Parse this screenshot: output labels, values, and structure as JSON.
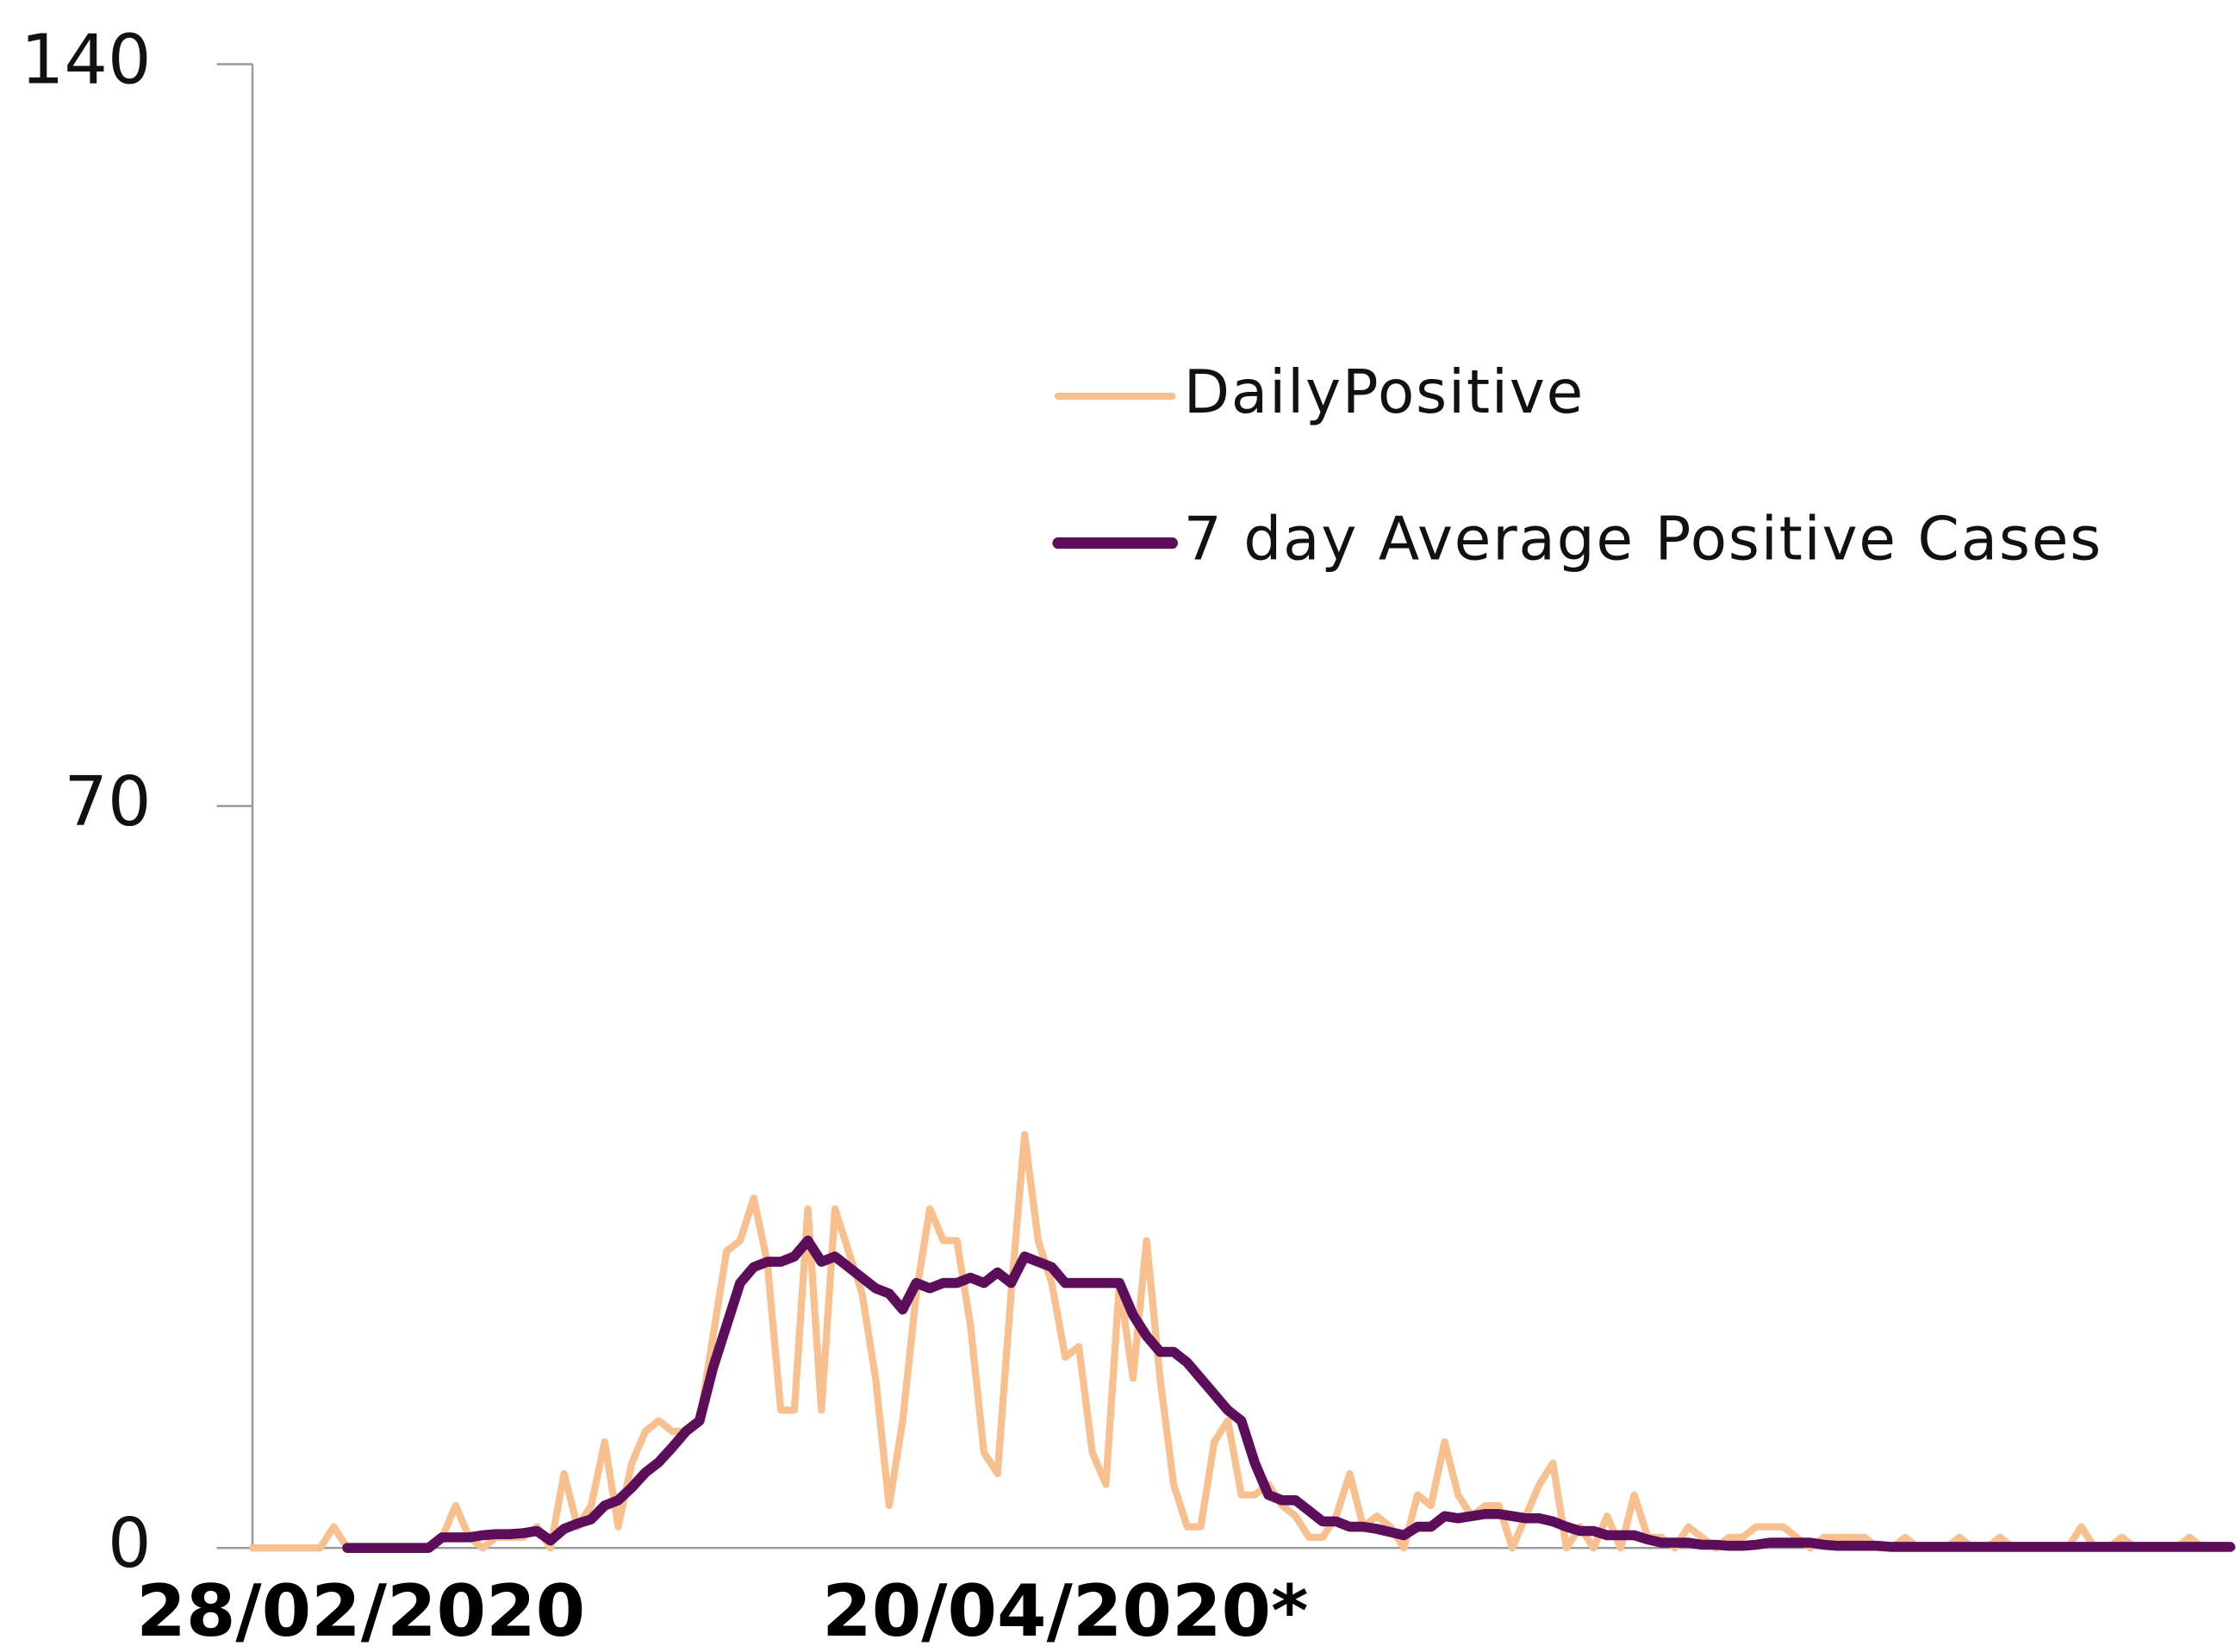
{
  "chart_data": {
    "type": "line",
    "categories": [
      null,
      null,
      null,
      null,
      null,
      null,
      null,
      null,
      "28/02/2020",
      null,
      null,
      null,
      null,
      null,
      null,
      null,
      null,
      null,
      null,
      null,
      null,
      null,
      null,
      null,
      null,
      null,
      null,
      null,
      null,
      null,
      null,
      null,
      null,
      null,
      null,
      null,
      null,
      null,
      null,
      null,
      null,
      null,
      null,
      null,
      null,
      null,
      null,
      null,
      null,
      null,
      null,
      null,
      null,
      null,
      null,
      null,
      null,
      null,
      null,
      null,
      "20/04/2020*",
      null,
      null,
      null,
      null,
      null,
      null,
      null,
      null,
      null,
      null,
      null,
      null,
      null,
      null,
      null,
      null,
      null,
      null,
      null,
      null,
      null,
      null,
      null,
      null,
      null,
      null,
      null,
      null,
      null,
      null,
      null,
      null,
      null,
      null,
      null,
      null,
      null,
      null,
      null,
      null,
      null,
      null,
      null,
      null,
      null,
      null,
      null,
      null,
      null,
      null,
      null,
      null,
      null,
      null,
      null,
      null,
      null,
      null,
      null,
      null,
      null,
      null,
      null,
      null,
      null,
      null,
      null,
      null,
      null,
      null,
      null,
      null,
      null,
      null,
      null,
      null,
      null,
      null,
      null,
      null,
      null,
      null,
      null,
      null,
      null,
      null
    ],
    "series": [
      {
        "name": "DailyPositive",
        "color": "#f8c08e",
        "values": [
          0,
          0,
          0,
          0,
          0,
          0,
          2,
          0,
          0,
          0,
          0,
          0,
          0,
          0,
          1,
          4,
          1,
          0,
          1,
          1,
          1,
          2,
          0,
          7,
          2,
          4,
          10,
          2,
          8,
          11,
          12,
          11,
          11,
          12,
          20,
          28,
          29,
          33,
          27,
          13,
          13,
          32,
          13,
          32,
          28,
          24,
          16,
          4,
          12,
          24,
          32,
          29,
          29,
          21,
          9,
          7,
          24,
          39,
          29,
          25,
          18,
          19,
          9,
          6,
          25,
          16,
          29,
          16,
          6,
          2,
          2,
          10,
          12,
          5,
          5,
          6,
          4,
          3,
          1,
          1,
          3,
          7,
          2,
          3,
          2,
          0,
          5,
          4,
          10,
          5,
          3,
          4,
          4,
          0,
          3,
          6,
          8,
          0,
          2,
          0,
          3,
          0,
          5,
          1,
          1,
          0,
          2,
          1,
          0,
          1,
          1,
          2,
          2,
          2,
          1,
          0,
          1,
          1,
          1,
          1,
          0,
          0,
          1,
          0,
          0,
          0,
          1,
          0,
          0,
          1,
          0,
          0,
          0,
          0,
          0,
          2,
          0,
          0,
          1,
          0,
          0,
          0,
          0,
          1,
          0,
          0,
          0
        ]
      },
      {
        "name": "7 day Average Positive Cases",
        "color": "#5c0e5a",
        "values": [
          null,
          null,
          null,
          null,
          null,
          null,
          null,
          0,
          0,
          0,
          0,
          0,
          0,
          0,
          1,
          1,
          1,
          1.2,
          1.3,
          1.3,
          1.4,
          1.6,
          0.7,
          1.8,
          2.3,
          2.7,
          4,
          4.5,
          5.7,
          7.1,
          8.1,
          9.5,
          11,
          12,
          17,
          21,
          25,
          26.5,
          27,
          27,
          27.5,
          29,
          27,
          27.5,
          26.5,
          25.5,
          24.5,
          24,
          22.5,
          25,
          24.5,
          25,
          25,
          25.5,
          25,
          26,
          25,
          27.5,
          27,
          26.5,
          25,
          25,
          25,
          25,
          25,
          22,
          20,
          18.5,
          18.5,
          17.5,
          16,
          14.5,
          13,
          12,
          8,
          5,
          4.5,
          4.5,
          3.5,
          2.5,
          2.5,
          2,
          2,
          1.8,
          1.5,
          1.2,
          2,
          2,
          3,
          2.8,
          3,
          3.2,
          3.2,
          3,
          2.8,
          2.8,
          2.5,
          2,
          1.6,
          1.6,
          1.2,
          1.2,
          1.2,
          0.8,
          0.5,
          0.5,
          0.5,
          0.3,
          0.3,
          0.2,
          0.2,
          0.3,
          0.5,
          0.5,
          0.5,
          0.5,
          0.3,
          0.2,
          0.2,
          0.2,
          0.2,
          0.1,
          0.1,
          0.1,
          0.1,
          0.1,
          0.1,
          0.1,
          0.1,
          0.1,
          0.1,
          0.1,
          0.1,
          0.1,
          0.1,
          0.1,
          0.1,
          0.1,
          0.1,
          0.1,
          0.1,
          0.1,
          0.1,
          0.1,
          0.1,
          0.1,
          0.1
        ]
      }
    ],
    "ylim": [
      0,
      140
    ],
    "yticks": [
      0,
      70,
      140
    ],
    "grid": false,
    "legend": "right"
  }
}
